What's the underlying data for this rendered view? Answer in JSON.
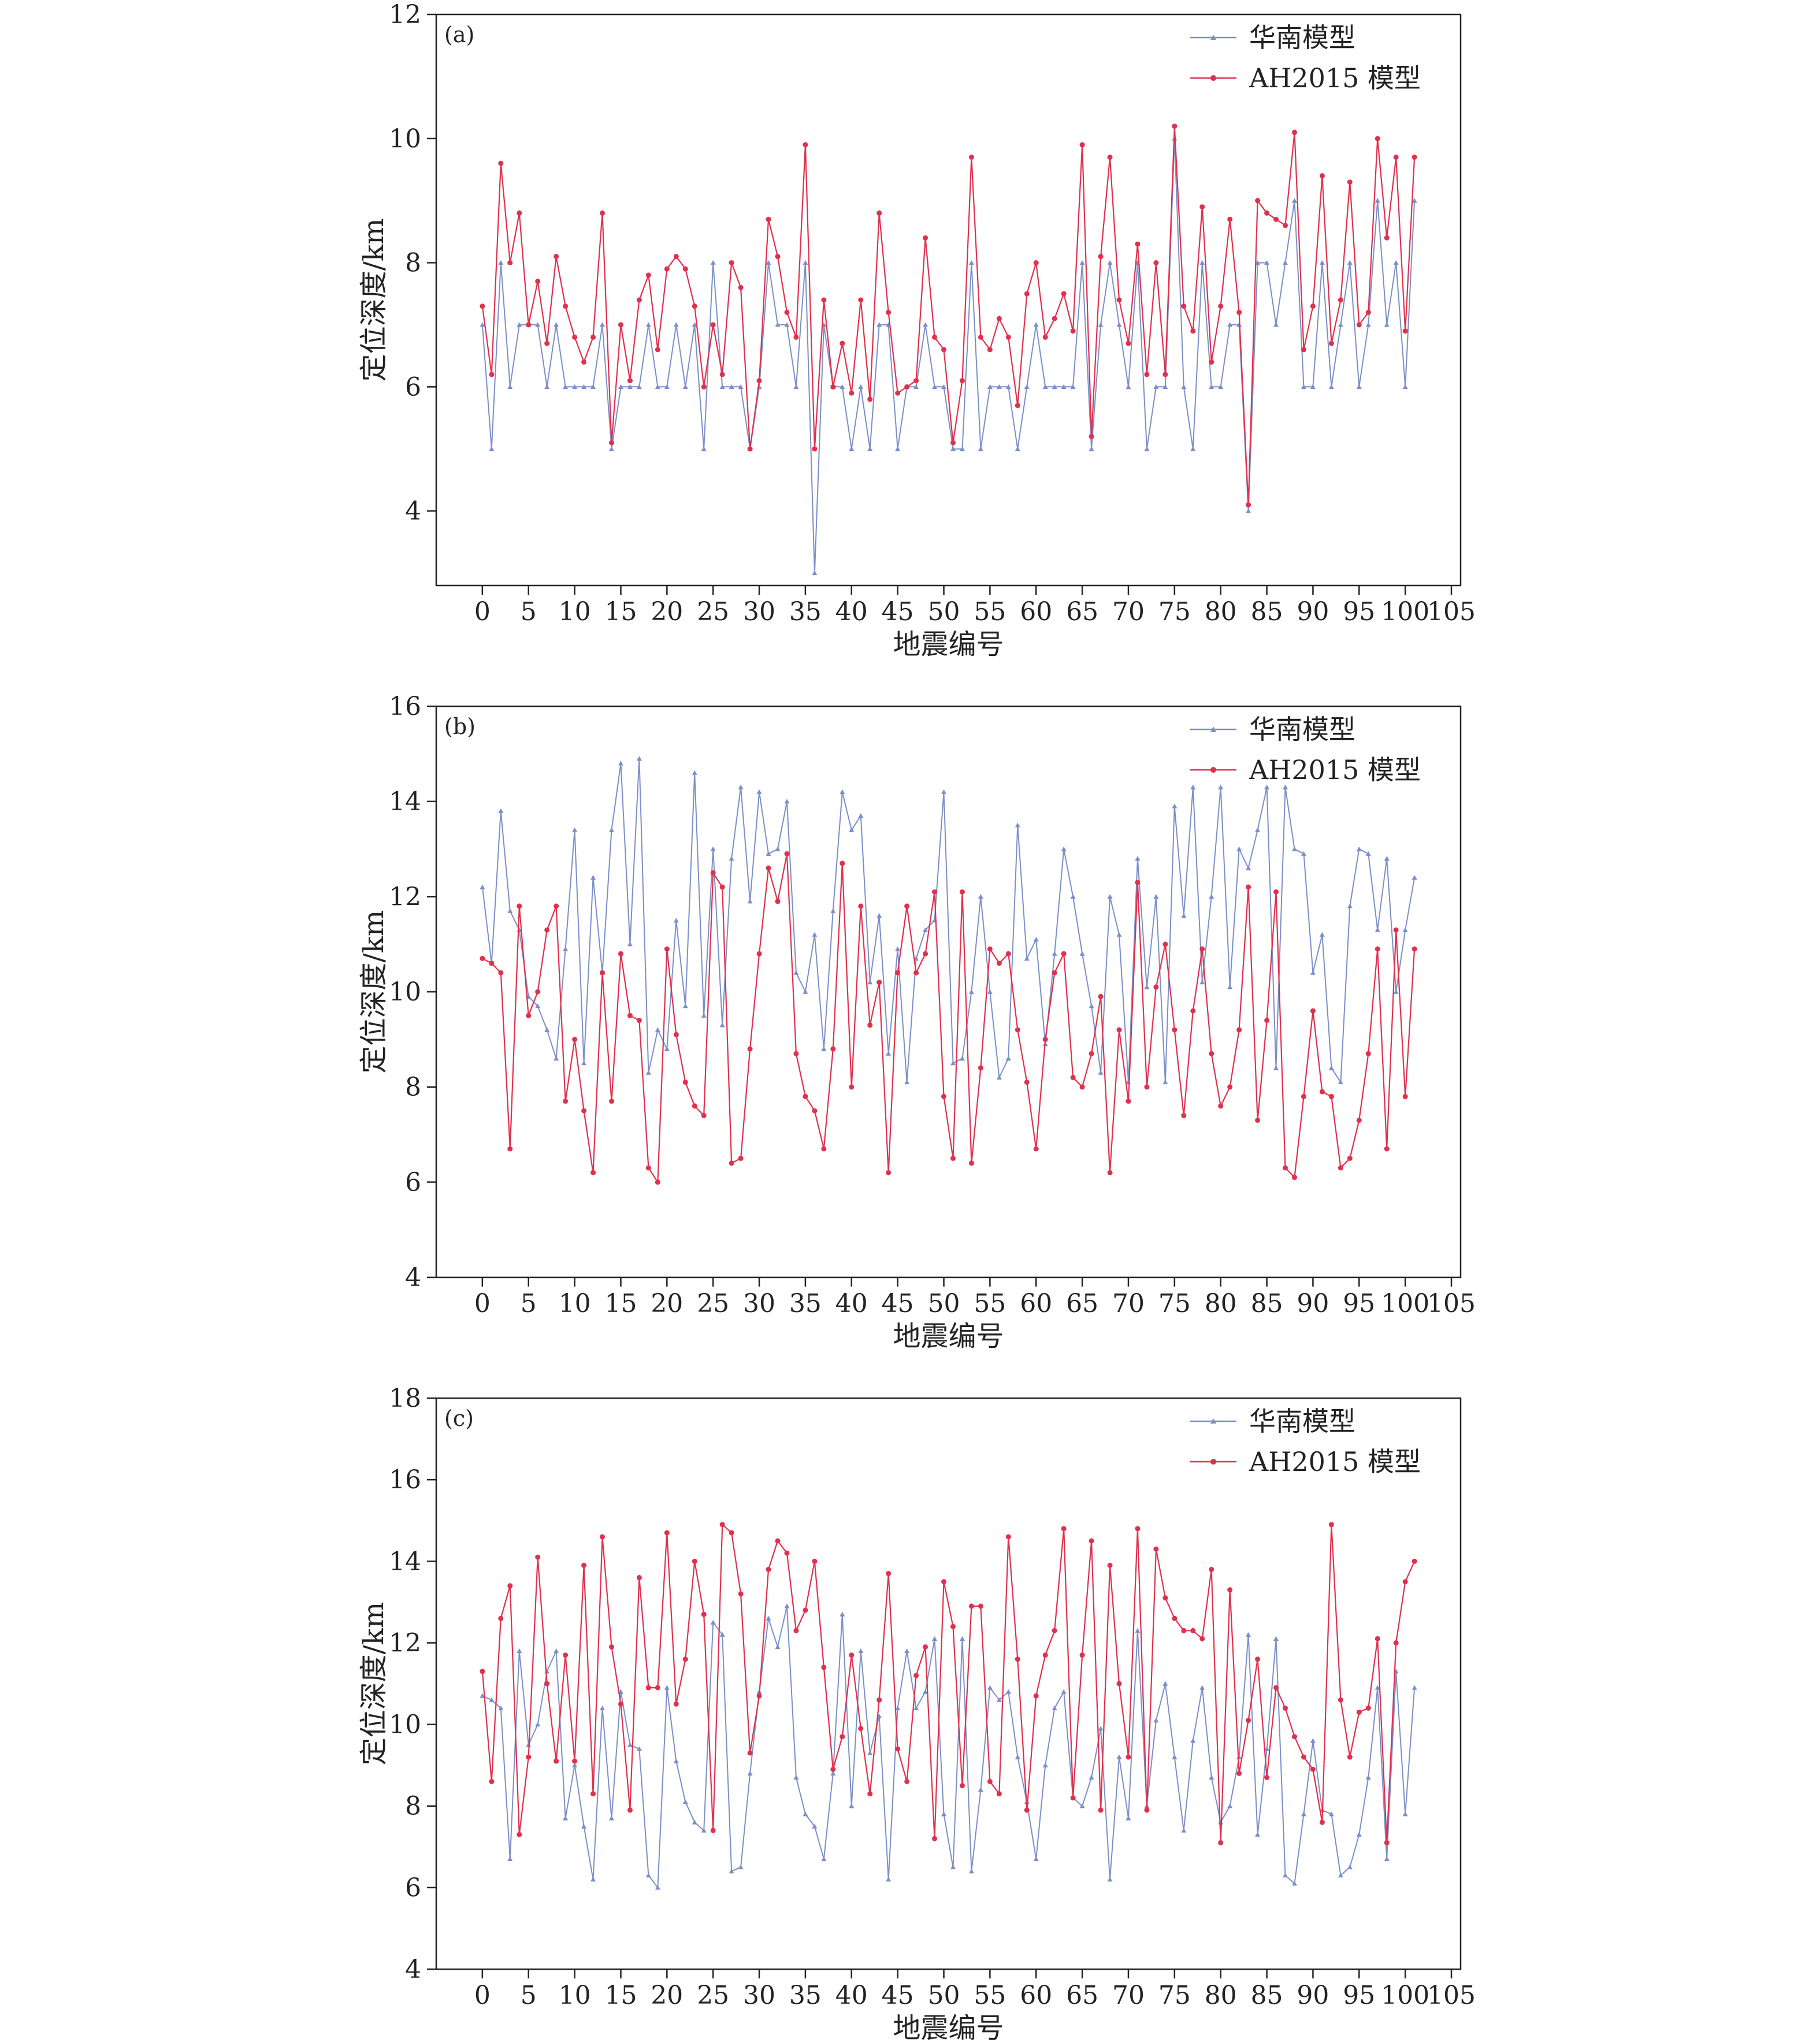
{
  "chart_data": [
    {
      "type": "line",
      "panel_label": "(a)",
      "xlabel": "地震编号",
      "ylabel": "定位深度/km",
      "xlim": [
        -5,
        106
      ],
      "ylim": [
        2.8,
        12
      ],
      "xticks": [
        0,
        5,
        10,
        15,
        20,
        25,
        30,
        35,
        40,
        45,
        50,
        55,
        60,
        65,
        70,
        75,
        80,
        85,
        90,
        95,
        100,
        105
      ],
      "yticks": [
        4,
        6,
        8,
        10,
        12
      ],
      "legend_position": "top-right",
      "series": [
        {
          "name": "华南模型",
          "color": "#7b8fc8",
          "marker": "triangle",
          "values": [
            7,
            5,
            8,
            6,
            7,
            7,
            7,
            6,
            7,
            6,
            6,
            6,
            6,
            7,
            5,
            6,
            6,
            6,
            7,
            6,
            6,
            7,
            6,
            7,
            5,
            8,
            6,
            6,
            6,
            5,
            6,
            8,
            7,
            7,
            6,
            8,
            3,
            7,
            6,
            6,
            5,
            6,
            5,
            7,
            7,
            5,
            6,
            6,
            7,
            6,
            6,
            5,
            5,
            8,
            5,
            6,
            6,
            6,
            5,
            6,
            7,
            6,
            6,
            6,
            6,
            8,
            5,
            7,
            8,
            7,
            6,
            8,
            5,
            6,
            6,
            10,
            6,
            5,
            8,
            6,
            6,
            7,
            7,
            4,
            8,
            8,
            7,
            8,
            9,
            6,
            6,
            8,
            6,
            7,
            8,
            6,
            7,
            9,
            7,
            8,
            6,
            9
          ]
        },
        {
          "name": "AH2015 模型",
          "color": "#e0304e",
          "marker": "circle",
          "values": [
            7.3,
            6.2,
            9.6,
            8.0,
            8.8,
            7.0,
            7.7,
            6.7,
            8.1,
            7.3,
            6.8,
            6.4,
            6.8,
            8.8,
            5.1,
            7.0,
            6.1,
            7.4,
            7.8,
            6.6,
            7.9,
            8.1,
            7.9,
            7.3,
            6.0,
            7.0,
            6.2,
            8.0,
            7.6,
            5.0,
            6.1,
            8.7,
            8.1,
            7.2,
            6.8,
            9.9,
            5.0,
            7.4,
            6.0,
            6.7,
            5.9,
            7.4,
            5.8,
            8.8,
            7.2,
            5.9,
            6.0,
            6.1,
            8.4,
            6.8,
            6.6,
            5.1,
            6.1,
            9.7,
            6.8,
            6.6,
            7.1,
            6.8,
            5.7,
            7.5,
            8.0,
            6.8,
            7.1,
            7.5,
            6.9,
            9.9,
            5.2,
            8.1,
            9.7,
            7.4,
            6.7,
            8.3,
            6.2,
            8.0,
            6.2,
            10.2,
            7.3,
            6.9,
            8.9,
            6.4,
            7.3,
            8.7,
            7.2,
            4.1,
            9.0,
            8.8,
            8.7,
            8.6,
            10.1,
            6.6,
            7.3,
            9.4,
            6.7,
            7.4,
            9.3,
            7.0,
            7.2,
            10.0,
            8.4,
            9.7,
            6.9,
            9.7
          ]
        }
      ]
    },
    {
      "type": "line",
      "panel_label": "(b)",
      "xlabel": "地震编号",
      "ylabel": "定位深度/km",
      "xlim": [
        -5,
        106
      ],
      "ylim": [
        4,
        16
      ],
      "xticks": [
        0,
        5,
        10,
        15,
        20,
        25,
        30,
        35,
        40,
        45,
        50,
        55,
        60,
        65,
        70,
        75,
        80,
        85,
        90,
        95,
        100,
        105
      ],
      "yticks": [
        4,
        6,
        8,
        10,
        12,
        14,
        16
      ],
      "legend_position": "top-right",
      "series": [
        {
          "name": "华南模型",
          "color": "#7b8fc8",
          "marker": "triangle",
          "values": [
            12.2,
            10.6,
            13.8,
            11.7,
            11.3,
            9.9,
            9.7,
            9.2,
            8.6,
            10.9,
            13.4,
            8.5,
            12.4,
            10.4,
            13.4,
            14.8,
            11.0,
            14.9,
            8.3,
            9.2,
            8.8,
            11.5,
            9.7,
            14.6,
            9.5,
            13.0,
            9.3,
            12.8,
            14.3,
            11.9,
            14.2,
            12.9,
            13.0,
            14.0,
            10.4,
            10.0,
            11.2,
            8.8,
            11.7,
            14.2,
            13.4,
            13.7,
            10.2,
            11.6,
            8.7,
            10.9,
            8.1,
            10.7,
            11.3,
            11.5,
            14.2,
            8.5,
            8.6,
            10.0,
            12.0,
            10.0,
            8.2,
            8.6,
            13.5,
            10.7,
            11.1,
            8.9,
            10.8,
            13.0,
            12.0,
            10.8,
            9.7,
            8.3,
            12.0,
            11.2,
            8.1,
            12.8,
            10.1,
            12.0,
            8.1,
            13.9,
            11.6,
            14.3,
            10.2,
            12.0,
            14.3,
            10.1,
            13.0,
            12.6,
            13.4,
            14.3,
            8.4,
            14.3,
            13.0,
            12.9,
            10.4,
            11.2,
            8.4,
            8.1,
            11.8,
            13.0,
            12.9,
            11.3,
            12.8,
            10.0,
            11.3,
            12.4
          ]
        },
        {
          "name": "AH2015 模型",
          "color": "#e0304e",
          "marker": "circle",
          "values": [
            10.7,
            10.6,
            10.4,
            6.7,
            11.8,
            9.5,
            10.0,
            11.3,
            11.8,
            7.7,
            9.0,
            7.5,
            6.2,
            10.4,
            7.7,
            10.8,
            9.5,
            9.4,
            6.3,
            6.0,
            10.9,
            9.1,
            8.1,
            7.6,
            7.4,
            12.5,
            12.2,
            6.4,
            6.5,
            8.8,
            10.8,
            12.6,
            11.9,
            12.9,
            8.7,
            7.8,
            7.5,
            6.7,
            8.8,
            12.7,
            8.0,
            11.8,
            9.3,
            10.2,
            6.2,
            10.4,
            11.8,
            10.4,
            10.8,
            12.1,
            7.8,
            6.5,
            12.1,
            6.4,
            8.4,
            10.9,
            10.6,
            10.8,
            9.2,
            8.1,
            6.7,
            9.0,
            10.4,
            10.8,
            8.2,
            8.0,
            8.7,
            9.9,
            6.2,
            9.2,
            7.7,
            12.3,
            8.0,
            10.1,
            11.0,
            9.2,
            7.4,
            9.6,
            10.9,
            8.7,
            7.6,
            8.0,
            9.2,
            12.2,
            7.3,
            9.4,
            12.1,
            6.3,
            6.1,
            7.8,
            9.6,
            7.9,
            7.8,
            6.3,
            6.5,
            7.3,
            8.7,
            10.9,
            6.7,
            11.3,
            7.8,
            10.9
          ]
        }
      ]
    },
    {
      "type": "line",
      "panel_label": "(c)",
      "xlabel": "地震编号",
      "ylabel": "定位深度/km",
      "xlim": [
        -5,
        106
      ],
      "ylim": [
        4,
        18
      ],
      "xticks": [
        0,
        5,
        10,
        15,
        20,
        25,
        30,
        35,
        40,
        45,
        50,
        55,
        60,
        65,
        70,
        75,
        80,
        85,
        90,
        95,
        100,
        105
      ],
      "yticks": [
        4,
        6,
        8,
        10,
        12,
        14,
        16,
        18
      ],
      "legend_position": "top-right",
      "series": [
        {
          "name": "华南模型",
          "color": "#7b8fc8",
          "marker": "triangle",
          "values": [
            10.7,
            10.6,
            10.4,
            6.7,
            11.8,
            9.5,
            10.0,
            11.3,
            11.8,
            7.7,
            9.0,
            7.5,
            6.2,
            10.4,
            7.7,
            10.8,
            9.5,
            9.4,
            6.3,
            6.0,
            10.9,
            9.1,
            8.1,
            7.6,
            7.4,
            12.5,
            12.2,
            6.4,
            6.5,
            8.8,
            10.8,
            12.6,
            11.9,
            12.9,
            8.7,
            7.8,
            7.5,
            6.7,
            8.8,
            12.7,
            8.0,
            11.8,
            9.3,
            10.2,
            6.2,
            10.4,
            11.8,
            10.4,
            10.8,
            12.1,
            7.8,
            6.5,
            12.1,
            6.4,
            8.4,
            10.9,
            10.6,
            10.8,
            9.2,
            8.1,
            6.7,
            9.0,
            10.4,
            10.8,
            8.2,
            8.0,
            8.7,
            9.9,
            6.2,
            9.2,
            7.7,
            12.3,
            8.0,
            10.1,
            11.0,
            9.2,
            7.4,
            9.6,
            10.9,
            8.7,
            7.6,
            8.0,
            9.2,
            12.2,
            7.3,
            9.4,
            12.1,
            6.3,
            6.1,
            7.8,
            9.6,
            7.9,
            7.8,
            6.3,
            6.5,
            7.3,
            8.7,
            10.9,
            6.7,
            11.3,
            7.8,
            10.9
          ]
        },
        {
          "name": "AH2015 模型",
          "color": "#e0304e",
          "marker": "circle",
          "values": [
            11.3,
            8.6,
            12.6,
            13.4,
            7.3,
            9.2,
            14.1,
            11.0,
            9.1,
            11.7,
            9.1,
            13.9,
            8.3,
            14.6,
            11.9,
            10.5,
            7.9,
            13.6,
            10.9,
            10.9,
            14.7,
            10.5,
            11.6,
            14.0,
            12.7,
            7.4,
            14.9,
            14.7,
            13.2,
            9.3,
            10.7,
            13.8,
            14.5,
            14.2,
            12.3,
            12.8,
            14.0,
            11.4,
            8.9,
            9.7,
            11.7,
            9.9,
            8.3,
            10.6,
            13.7,
            9.4,
            8.6,
            11.2,
            11.9,
            7.2,
            13.5,
            12.4,
            8.5,
            12.9,
            12.9,
            8.6,
            8.3,
            14.6,
            11.6,
            7.9,
            10.7,
            11.7,
            12.3,
            14.8,
            8.2,
            11.7,
            14.5,
            7.9,
            13.9,
            11.0,
            9.2,
            14.8,
            7.9,
            14.3,
            13.1,
            12.6,
            12.3,
            12.3,
            12.1,
            13.8,
            7.1,
            13.3,
            8.8,
            10.1,
            11.6,
            8.7,
            10.9,
            10.4,
            9.7,
            9.2,
            8.9,
            7.6,
            14.9,
            10.6,
            9.2,
            10.3,
            10.4,
            12.1,
            7.1,
            12.0,
            13.5,
            14.0
          ]
        }
      ]
    }
  ]
}
